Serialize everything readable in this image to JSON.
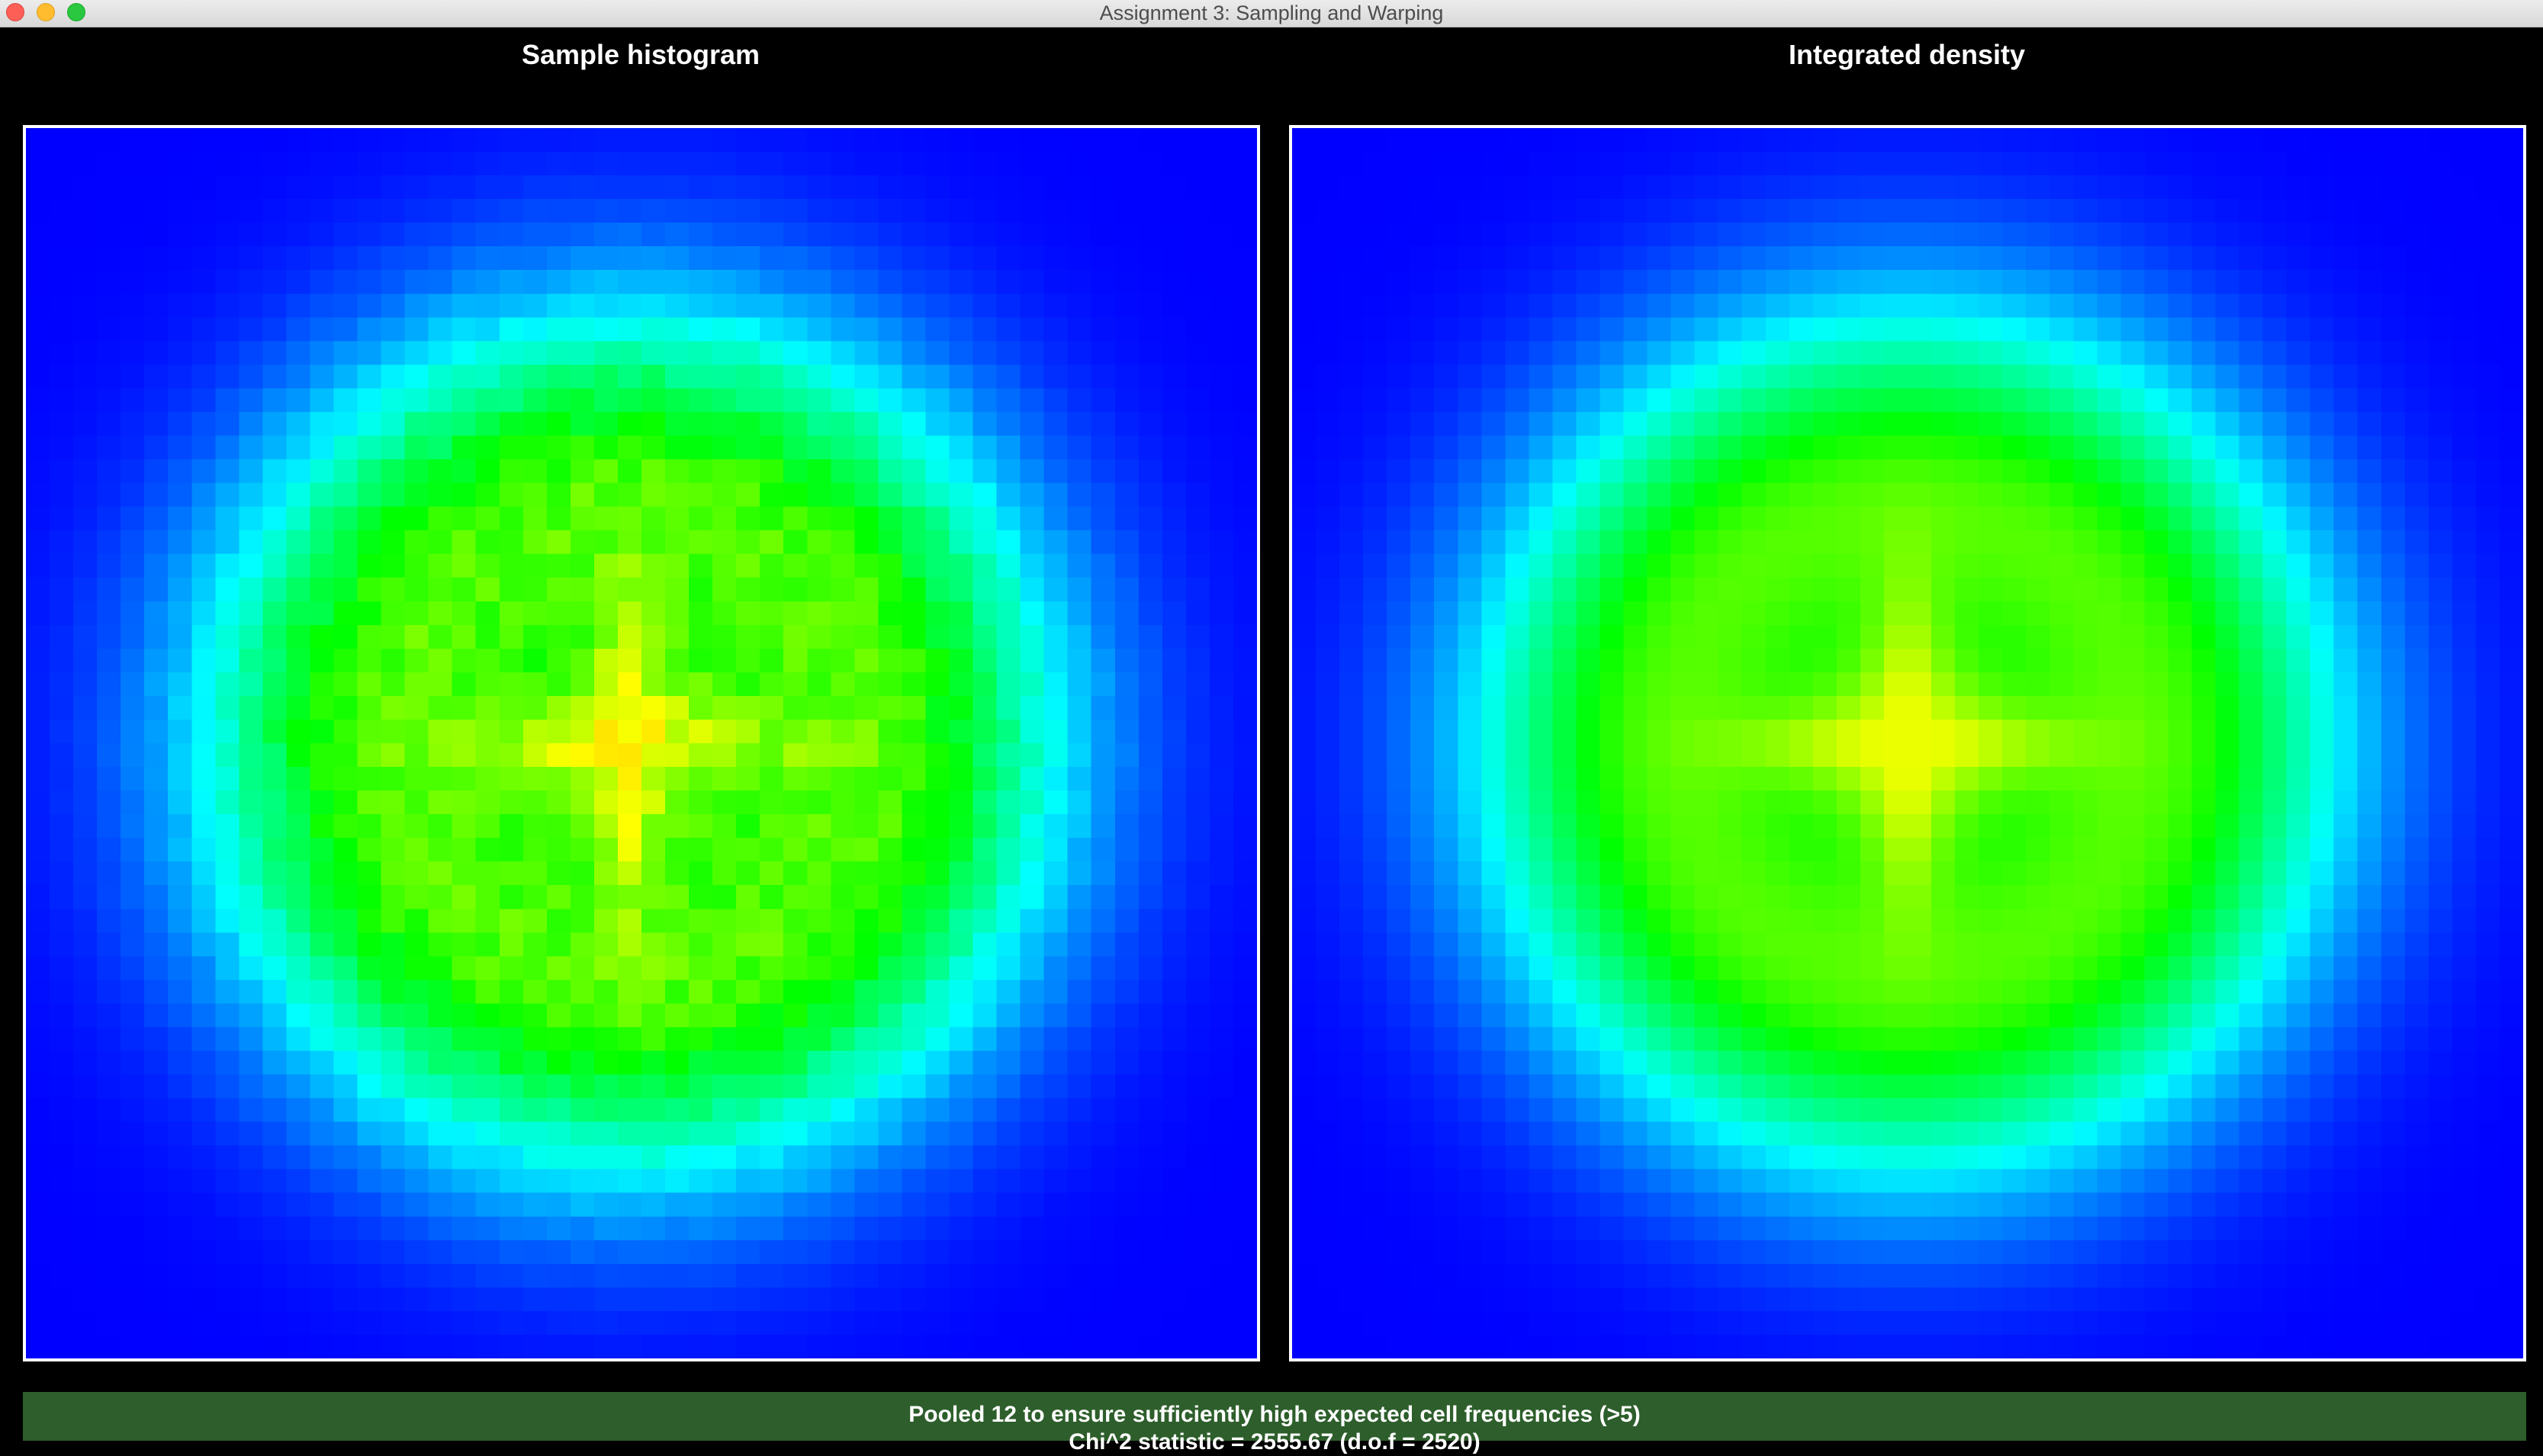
{
  "window": {
    "title": "Assignment 3: Sampling and Warping"
  },
  "panels": {
    "left_title": "Sample histogram",
    "right_title": "Integrated density"
  },
  "colormap": [
    "#0000ff",
    "#00ffff",
    "#00ff00",
    "#ffff00",
    "#ff0000"
  ],
  "status": {
    "line1": "Pooled 12 to ensure sufficiently high expected cell frequencies (>5)",
    "line2": "Chi^2 statistic = 2555.67 (d.o.f = 2520)"
  }
}
